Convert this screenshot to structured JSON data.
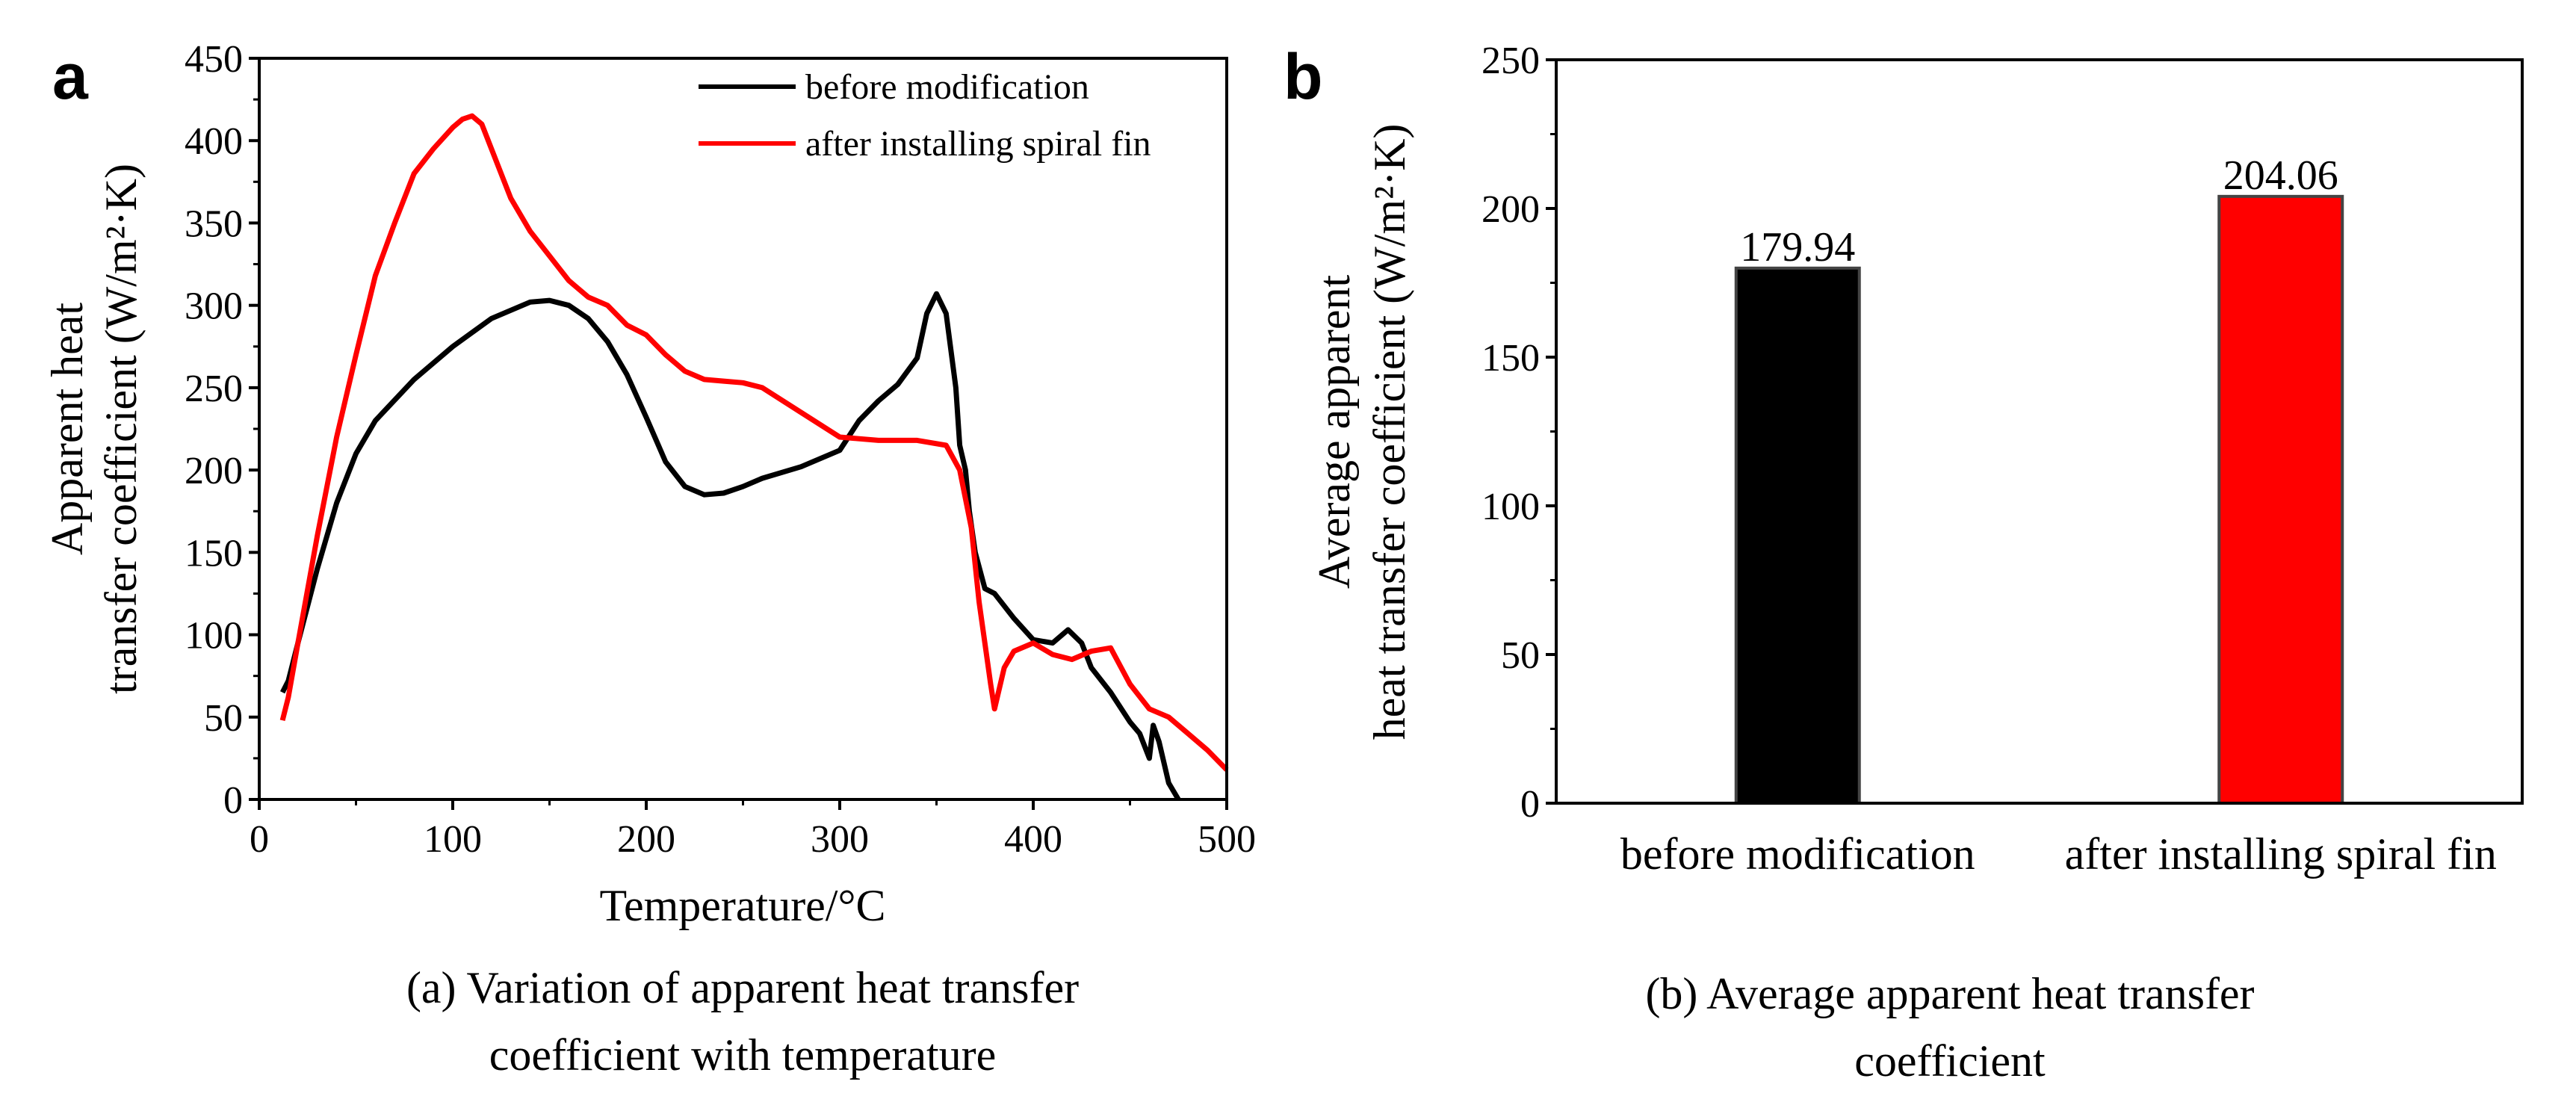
{
  "chart_data": [
    {
      "type": "line",
      "panel_label": "a",
      "title": "",
      "xlabel": "Temperature/°C",
      "ylabel_line1": "Apparent heat",
      "ylabel_line2": "transfer coefficient (W/m²·K)",
      "xlim": [
        0,
        500
      ],
      "ylim": [
        0,
        450
      ],
      "xticks": [
        0,
        100,
        200,
        300,
        400,
        500
      ],
      "yticks": [
        0,
        50,
        100,
        150,
        200,
        250,
        300,
        350,
        400,
        450
      ],
      "grid": false,
      "legend_position": "top-right",
      "caption_line1": "(a) Variation of apparent heat transfer",
      "caption_line2": "coefficient with temperature",
      "series": [
        {
          "name": "before modification",
          "color": "#000000",
          "x": [
            12,
            15,
            20,
            30,
            40,
            50,
            60,
            80,
            100,
            120,
            140,
            150,
            160,
            170,
            180,
            190,
            200,
            210,
            220,
            230,
            240,
            250,
            260,
            280,
            300,
            310,
            320,
            330,
            340,
            345,
            350,
            355,
            360,
            362,
            365,
            367,
            370,
            375,
            380,
            390,
            400,
            410,
            418,
            425,
            430,
            440,
            450,
            455,
            460,
            462,
            465,
            470,
            475
          ],
          "y": [
            65,
            72,
            95,
            140,
            180,
            210,
            230,
            255,
            275,
            292,
            302,
            303,
            300,
            292,
            278,
            258,
            232,
            205,
            190,
            185,
            186,
            190,
            195,
            202,
            212,
            230,
            242,
            252,
            268,
            295,
            307,
            295,
            250,
            215,
            200,
            175,
            150,
            128,
            125,
            110,
            97,
            95,
            103,
            95,
            80,
            65,
            47,
            40,
            25,
            45,
            35,
            10,
            0
          ]
        },
        {
          "name": "after installing spiral fin",
          "color": "#ff0000",
          "x": [
            12,
            15,
            20,
            30,
            40,
            50,
            60,
            70,
            80,
            90,
            100,
            105,
            110,
            115,
            120,
            130,
            140,
            150,
            160,
            170,
            180,
            190,
            200,
            210,
            220,
            230,
            240,
            250,
            260,
            280,
            300,
            320,
            340,
            355,
            362,
            368,
            372,
            378,
            380,
            385,
            390,
            400,
            410,
            420,
            430,
            440,
            450,
            460,
            470,
            480,
            490,
            500
          ],
          "y": [
            48,
            62,
            95,
            160,
            220,
            270,
            318,
            350,
            380,
            395,
            408,
            413,
            415,
            410,
            395,
            365,
            345,
            330,
            315,
            305,
            300,
            288,
            282,
            270,
            260,
            255,
            254,
            253,
            250,
            235,
            220,
            218,
            218,
            215,
            200,
            165,
            120,
            70,
            55,
            80,
            90,
            95,
            88,
            85,
            90,
            92,
            70,
            55,
            50,
            40,
            30,
            18
          ]
        }
      ]
    },
    {
      "type": "bar",
      "panel_label": "b",
      "title": "",
      "categories": [
        "before modification",
        "after installing spiral fin"
      ],
      "values": [
        179.94,
        204.06
      ],
      "value_labels": [
        "179.94",
        "204.06"
      ],
      "colors": [
        "#000000",
        "#ff0000"
      ],
      "xlabel": "",
      "ylabel_line1": "Average apparent",
      "ylabel_line2": "heat transfer coefficient (W/m²·K)",
      "ylim": [
        0,
        250
      ],
      "yticks": [
        0,
        50,
        100,
        150,
        200,
        250
      ],
      "grid": false,
      "caption_line1": "(b) Average apparent heat transfer",
      "caption_line2": "coefficient"
    }
  ]
}
